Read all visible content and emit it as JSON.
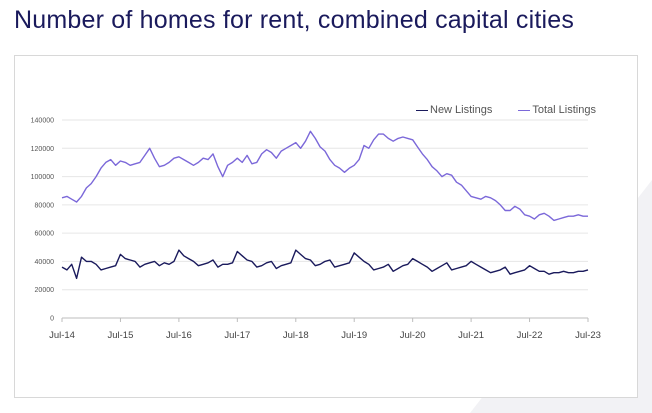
{
  "title": "Number of homes for rent, combined capital cities",
  "chart_data": {
    "type": "line",
    "title": "Number of homes for rent, combined capital cities",
    "xlabel": "",
    "ylabel": "",
    "x_ticks": [
      "Jul-14",
      "Jul-15",
      "Jul-16",
      "Jul-17",
      "Jul-18",
      "Jul-19",
      "Jul-20",
      "Jul-21",
      "Jul-22",
      "Jul-23"
    ],
    "y_ticks": [
      0,
      20000,
      40000,
      60000,
      80000,
      100000,
      120000,
      140000
    ],
    "ylim": [
      0,
      140000
    ],
    "grid": "horizontal",
    "legend_position": "top-right",
    "x_start": "2014-07",
    "x_step": "month",
    "series": [
      {
        "name": "New Listings",
        "color": "#1a1a5c",
        "values": [
          36000,
          34000,
          38000,
          28000,
          43000,
          40000,
          40000,
          38000,
          34000,
          35000,
          36000,
          37000,
          45000,
          42000,
          41000,
          40000,
          36000,
          38000,
          39000,
          40000,
          37000,
          39000,
          38000,
          40000,
          48000,
          44000,
          42000,
          40000,
          37000,
          38000,
          39000,
          41000,
          36000,
          38000,
          38000,
          39000,
          47000,
          44000,
          41000,
          40000,
          36000,
          37000,
          39000,
          40000,
          35000,
          37000,
          38000,
          39000,
          48000,
          45000,
          42000,
          41000,
          37000,
          38000,
          40000,
          41000,
          36000,
          37000,
          38000,
          39000,
          46000,
          43000,
          40000,
          38000,
          34000,
          35000,
          36000,
          38000,
          33000,
          35000,
          37000,
          38000,
          42000,
          40000,
          38000,
          36000,
          33000,
          35000,
          37000,
          39000,
          34000,
          35000,
          36000,
          37000,
          40000,
          38000,
          36000,
          34000,
          32000,
          33000,
          34000,
          36000,
          31000,
          32000,
          33000,
          34000,
          37000,
          35000,
          33000,
          33000,
          31000,
          32000,
          32000,
          33000,
          32000,
          32000,
          33000,
          33000,
          34000
        ]
      },
      {
        "name": "Total Listings",
        "color": "#7b68d9",
        "values": [
          85000,
          86000,
          84000,
          82000,
          86000,
          92000,
          95000,
          100000,
          106000,
          110000,
          112000,
          108000,
          111000,
          110000,
          108000,
          109000,
          110000,
          115000,
          120000,
          113000,
          107000,
          108000,
          110000,
          113000,
          114000,
          112000,
          110000,
          108000,
          110000,
          113000,
          112000,
          116000,
          107000,
          100000,
          108000,
          110000,
          113000,
          110000,
          115000,
          109000,
          110000,
          116000,
          119000,
          117000,
          113000,
          118000,
          120000,
          122000,
          124000,
          120000,
          125000,
          132000,
          127000,
          121000,
          118000,
          112000,
          108000,
          106000,
          103000,
          106000,
          108000,
          112000,
          122000,
          120000,
          126000,
          130000,
          130000,
          127000,
          125000,
          127000,
          128000,
          127000,
          126000,
          121000,
          116000,
          112000,
          107000,
          104000,
          100000,
          102000,
          101000,
          96000,
          94000,
          90000,
          86000,
          85000,
          84000,
          86000,
          85000,
          83000,
          80000,
          76000,
          76000,
          79000,
          77000,
          73000,
          72000,
          70000,
          73000,
          74000,
          72000,
          69000,
          70000,
          71000,
          72000,
          72000,
          73000,
          72000,
          72000
        ]
      }
    ]
  }
}
